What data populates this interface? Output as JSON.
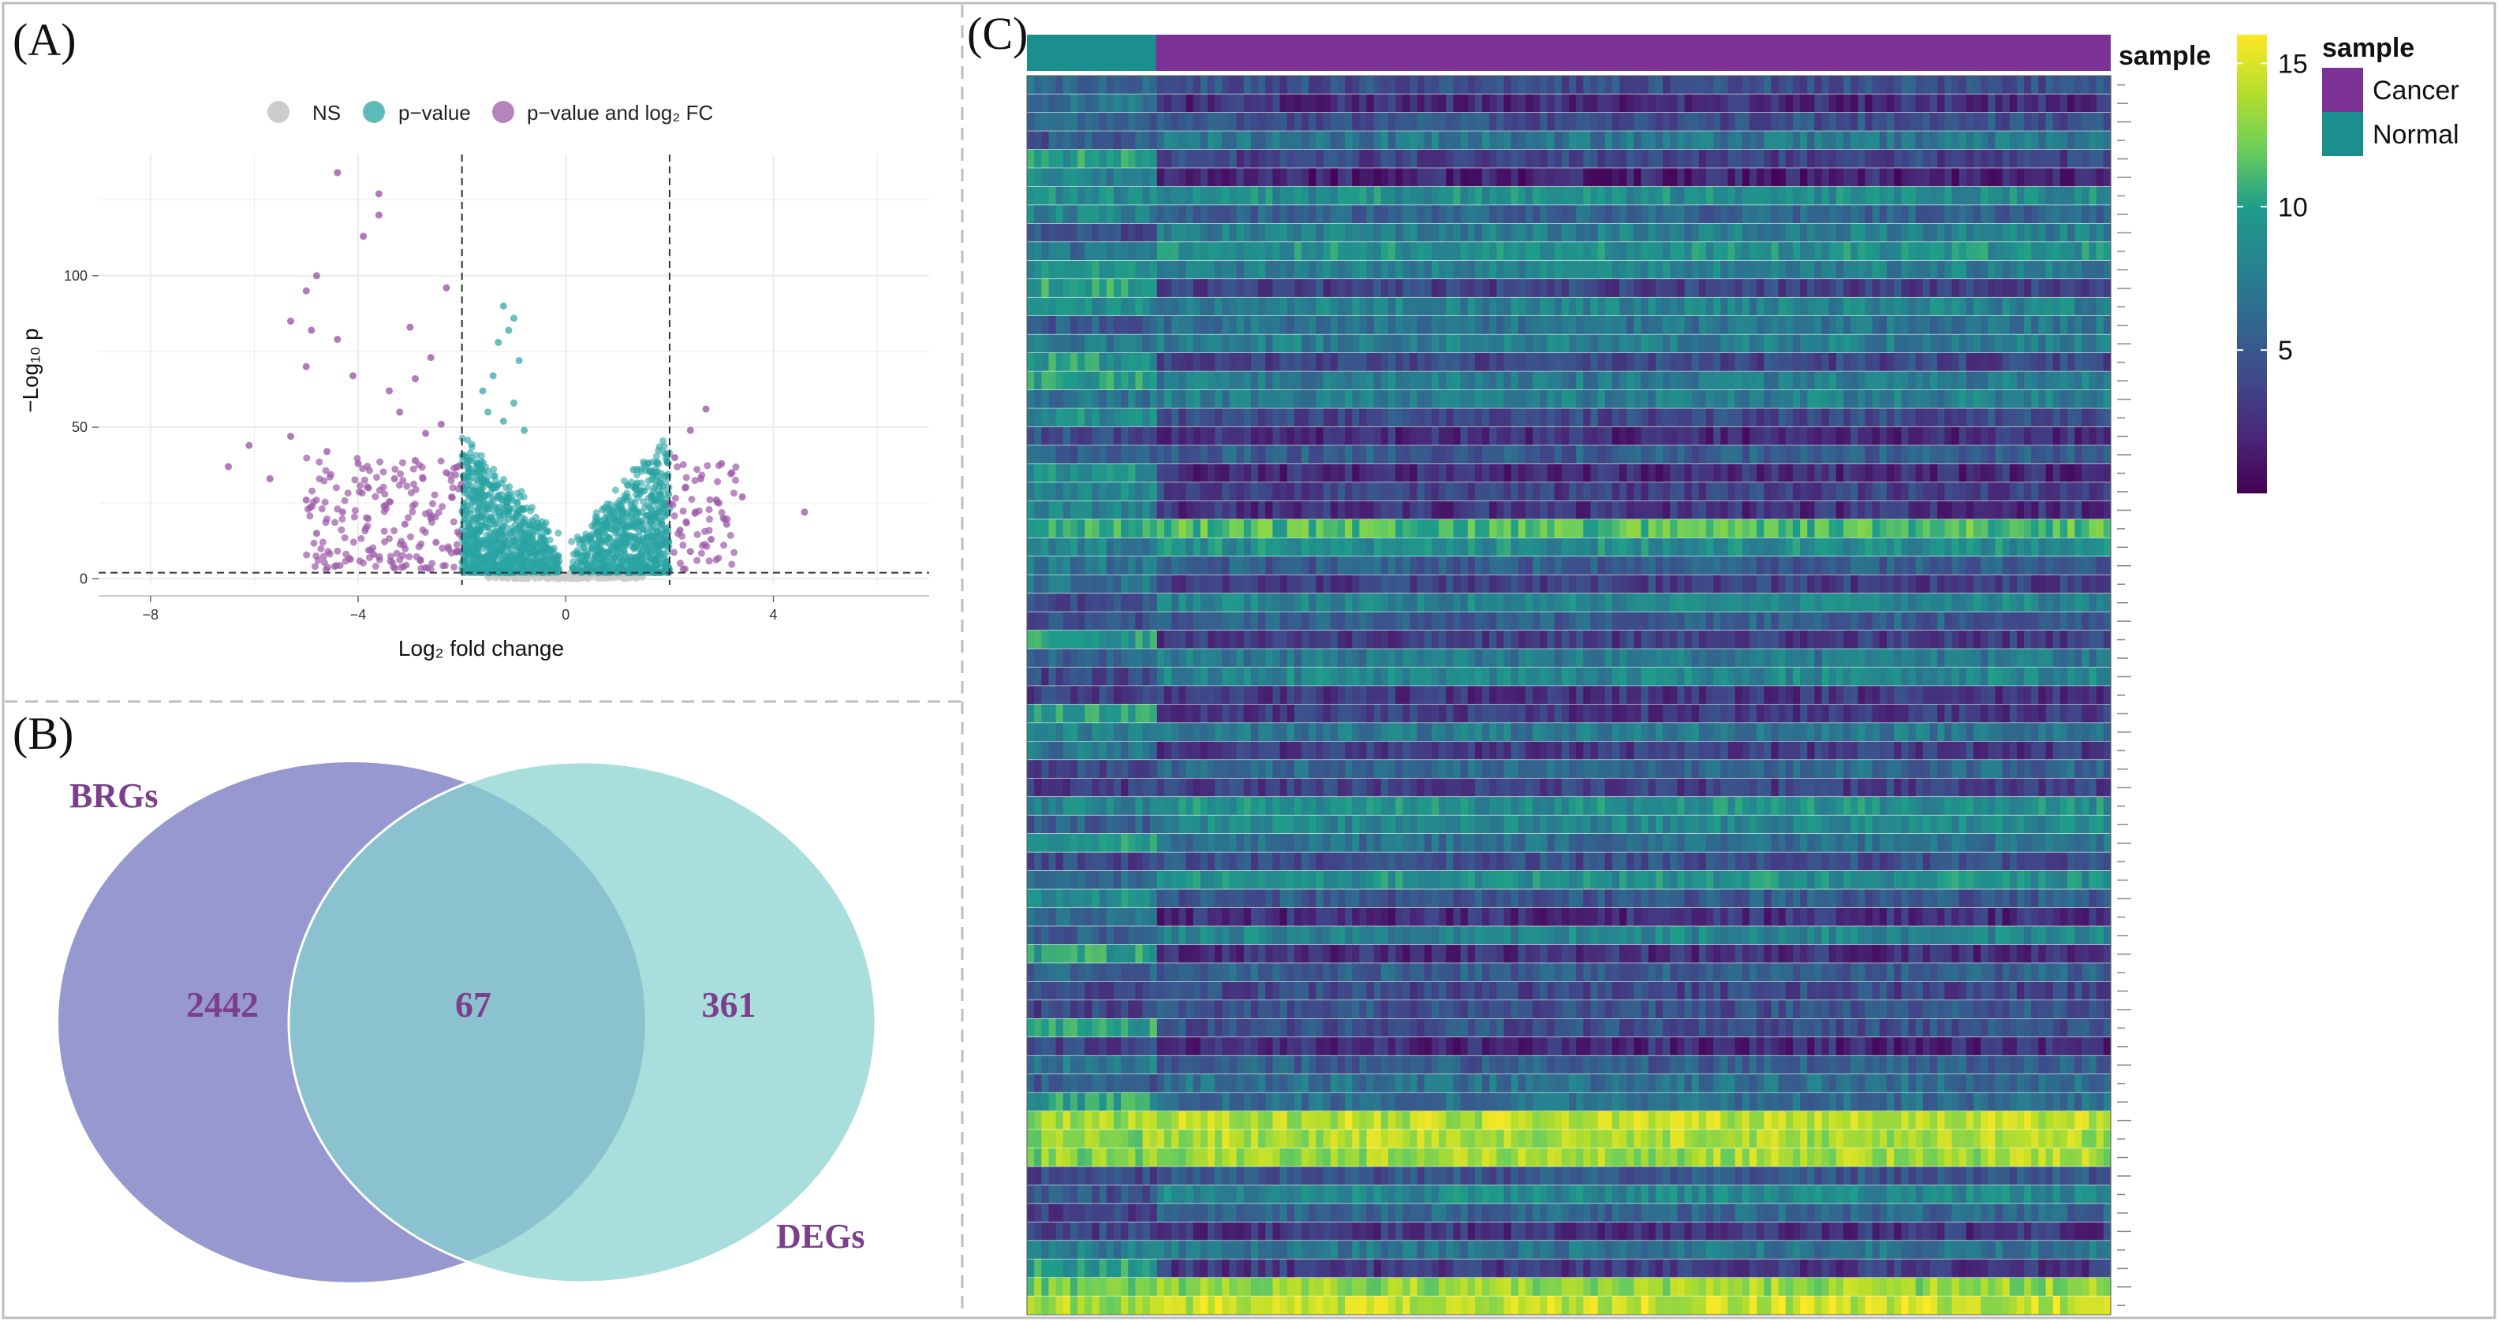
{
  "panels": {
    "a_label": "(A)",
    "b_label": "(B)",
    "c_label": "(C)"
  },
  "chart_data": [
    {
      "panel": "A",
      "type": "scatter",
      "title": "",
      "xlabel": "Log₂ fold change",
      "ylabel": "−Log₁₀ p",
      "xlim": [
        -9,
        7
      ],
      "ylim": [
        -2,
        140
      ],
      "xticks": [
        -8,
        -4,
        0,
        4
      ],
      "yticks": [
        0,
        50,
        100
      ],
      "grid": true,
      "fc_cutoff": [
        -2,
        2
      ],
      "p_cutoff": 2,
      "legend": {
        "placement": "top",
        "entries": [
          {
            "key": "ns",
            "label": "NS",
            "color": "#cccccc"
          },
          {
            "key": "p",
            "label": "p−value",
            "color": "#2aa3a3"
          },
          {
            "key": "pfc",
            "label": "p−value and log₂ FC",
            "color": "#9c5aa8"
          }
        ]
      },
      "series": [
        {
          "name": "p−value and log₂ FC",
          "color": "#9c5aa8",
          "points": [
            [
              -4.4,
              134
            ],
            [
              -3.6,
              127
            ],
            [
              -3.6,
              120
            ],
            [
              -3.9,
              113
            ],
            [
              -4.8,
              100
            ],
            [
              -5.0,
              95
            ],
            [
              -5.3,
              85
            ],
            [
              -4.9,
              82
            ],
            [
              -4.4,
              79
            ],
            [
              -5.0,
              70
            ],
            [
              -4.1,
              67
            ],
            [
              -3.0,
              83
            ],
            [
              -2.3,
              96
            ],
            [
              -2.6,
              73
            ],
            [
              -2.9,
              66
            ],
            [
              -3.4,
              62
            ],
            [
              -6.1,
              44
            ],
            [
              -6.5,
              37
            ],
            [
              -5.3,
              47
            ],
            [
              -5.7,
              33
            ],
            [
              -4.6,
              42
            ],
            [
              -4.0,
              38
            ],
            [
              -3.8,
              30
            ],
            [
              -3.5,
              24
            ],
            [
              -3.2,
              55
            ],
            [
              -2.7,
              48
            ],
            [
              -2.4,
              51
            ],
            [
              -2.9,
              39
            ],
            [
              -3.1,
              18
            ],
            [
              -2.2,
              27
            ],
            [
              -2.5,
              12
            ],
            [
              -4.3,
              22
            ],
            [
              -5.0,
              26
            ],
            [
              -4.8,
              15
            ],
            [
              -3.7,
              8
            ],
            [
              -2.8,
              6
            ],
            [
              -2.3,
              35
            ],
            [
              -3.3,
              33
            ],
            [
              -2.6,
              20
            ],
            [
              -2.1,
              9
            ],
            [
              2.4,
              49
            ],
            [
              2.7,
              56
            ],
            [
              3.0,
              38
            ],
            [
              3.2,
              35
            ],
            [
              2.6,
              33
            ],
            [
              2.3,
              30
            ],
            [
              2.9,
              26
            ],
            [
              2.5,
              22
            ],
            [
              3.4,
              27
            ],
            [
              2.2,
              16
            ],
            [
              2.8,
              13
            ],
            [
              2.4,
              9
            ],
            [
              4.6,
              22
            ],
            [
              3.1,
              18
            ],
            [
              2.1,
              40
            ]
          ],
          "clusters": [
            {
              "x_range": [
                -5.0,
                -2.0
              ],
              "y_range": [
                3,
                40
              ],
              "count": 170
            },
            {
              "x_range": [
                2.0,
                3.3
              ],
              "y_range": [
                3,
                38
              ],
              "count": 55
            }
          ]
        },
        {
          "name": "p−value",
          "color": "#2aa3a3",
          "points": [
            [
              -1.2,
              90
            ],
            [
              -1.0,
              86
            ],
            [
              -1.1,
              82
            ],
            [
              -1.3,
              78
            ],
            [
              -0.9,
              72
            ],
            [
              -1.4,
              67
            ],
            [
              -1.6,
              62
            ],
            [
              -1.0,
              58
            ],
            [
              -1.5,
              55
            ],
            [
              -1.2,
              52
            ],
            [
              -0.8,
              49
            ],
            [
              1.6,
              38
            ],
            [
              1.3,
              36
            ]
          ],
          "clusters": [
            {
              "side": "left",
              "x_range": [
                -2.0,
                -0.1
              ],
              "y_range": [
                2,
                50
              ],
              "count": 900
            },
            {
              "side": "right",
              "x_range": [
                0.1,
                2.0
              ],
              "y_range": [
                2,
                40
              ],
              "count": 750
            }
          ]
        },
        {
          "name": "NS",
          "color": "#cccccc",
          "clusters": [
            {
              "x_range": [
                -1.5,
                1.5
              ],
              "y_range": [
                0,
                2
              ],
              "count": 200
            }
          ]
        }
      ]
    },
    {
      "panel": "B",
      "type": "venn",
      "sets": [
        {
          "name": "BRGs",
          "only": "2442",
          "color": "#8f8fcc"
        },
        {
          "name": "DEGs",
          "only": "361",
          "color": "#9edbd8"
        }
      ],
      "intersection": "67",
      "text_color": "#7b3f8c"
    },
    {
      "panel": "C",
      "type": "heatmap",
      "rows": 67,
      "groups": [
        {
          "name": "Normal",
          "fraction": 0.119,
          "color": "#1a8f8d"
        },
        {
          "name": "Cancer",
          "fraction": 0.881,
          "color": "#7b3294"
        }
      ],
      "annotation_title": "sample",
      "legend_title": "sample",
      "legend_entries": [
        {
          "label": "Cancer",
          "color": "#7b3294"
        },
        {
          "label": "Normal",
          "color": "#1a8f8d"
        }
      ],
      "colorbar": {
        "palette": "viridis",
        "range": [
          0,
          16
        ],
        "ticks": [
          5,
          10,
          15
        ],
        "colors": [
          "#440154",
          "#482777",
          "#3f4a8a",
          "#31678e",
          "#26838f",
          "#1f9d8a",
          "#6cce5a",
          "#b6de2b",
          "#fee825"
        ]
      }
    }
  ]
}
